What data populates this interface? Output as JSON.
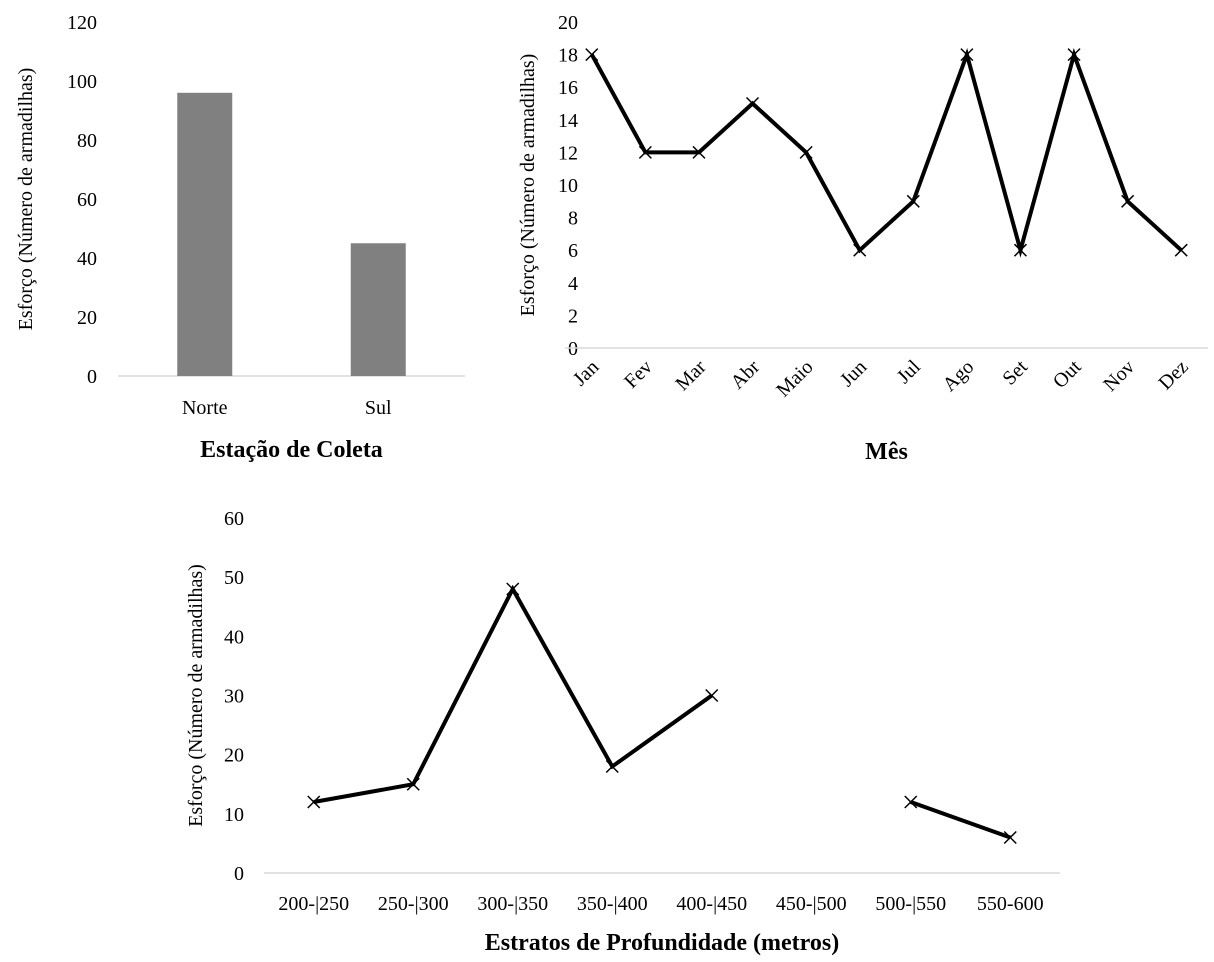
{
  "chart_data": [
    {
      "type": "bar",
      "categories": [
        "Norte",
        "Sul"
      ],
      "values": [
        96,
        45
      ],
      "xlabel": "Estação de Coleta",
      "ylabel": "Esforço  (Número  de  armadilhas)",
      "ylim": [
        0,
        120
      ],
      "yticks": [
        0,
        20,
        40,
        60,
        80,
        100,
        120
      ],
      "bar_color": "#808080",
      "grid": false
    },
    {
      "type": "line",
      "categories": [
        "Jan",
        "Fev",
        "Mar",
        "Abr",
        "Maio",
        "Jun",
        "Jul",
        "Ago",
        "Set",
        "Out",
        "Nov",
        "Dez"
      ],
      "values": [
        18,
        12,
        12,
        15,
        12,
        6,
        9,
        18,
        6,
        18,
        9,
        6
      ],
      "xlabel": "Mês",
      "ylabel": "Esforço  (Número  de  armadilhas)",
      "ylim": [
        0,
        20
      ],
      "yticks": [
        0,
        2,
        4,
        6,
        8,
        10,
        12,
        14,
        16,
        18,
        20
      ],
      "marker": "x",
      "line_color": "#000000",
      "grid": false
    },
    {
      "type": "line",
      "categories": [
        "200-|250",
        "250-|300",
        "300-|350",
        "350-|400",
        "400-|450",
        "450-|500",
        "500-|550",
        "550-600"
      ],
      "values": [
        12,
        15,
        48,
        18,
        30,
        null,
        12,
        6
      ],
      "xlabel": "Estratos de Profundidade  (metros)",
      "ylabel": "Esforço  (Número  de  armadilhas)",
      "ylim": [
        0,
        60
      ],
      "yticks": [
        0,
        10,
        20,
        30,
        40,
        50,
        60
      ],
      "marker": "x",
      "line_color": "#000000",
      "grid": false
    }
  ]
}
